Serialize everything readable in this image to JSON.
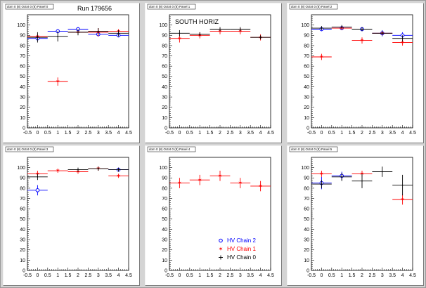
{
  "colors": {
    "hv_chain_2": "#0000ff",
    "hv_chain_1": "#ff0000",
    "hv_chain_0": "#000000"
  },
  "legend": [
    {
      "name": "HV Chain 2",
      "color": "#0000ff",
      "marker": "open-circle"
    },
    {
      "name": "HV Chain 1",
      "color": "#ff0000",
      "marker": "star"
    },
    {
      "name": "HV Chain 0",
      "color": "#000000",
      "marker": "plus"
    }
  ],
  "chart_data": [
    {
      "type": "scatter",
      "title": "dom 0 (8) Octnt 0 (8) Panel 0",
      "label": "Run 179656",
      "xlim": [
        -0.5,
        4.5
      ],
      "ylim": [
        0,
        110
      ],
      "xticks": [
        "-0.5",
        "0",
        "0.5",
        "1",
        "1.5",
        "2",
        "2.5",
        "3",
        "3.5",
        "4",
        "4.5"
      ],
      "yticks": [
        "0",
        "10",
        "20",
        "30",
        "40",
        "50",
        "60",
        "70",
        "80",
        "90",
        "100"
      ],
      "series": [
        {
          "name": "HV Chain 2",
          "color": "#0000ff",
          "marker": "open-circle",
          "points": [
            {
              "x": 0,
              "y": 87,
              "yerr": 2
            },
            {
              "x": 1,
              "y": 94,
              "yerr": 2
            },
            {
              "x": 2,
              "y": 96,
              "yerr": 2
            },
            {
              "x": 3,
              "y": 91,
              "yerr": 2
            },
            {
              "x": 4,
              "y": 90,
              "yerr": 2
            }
          ]
        },
        {
          "name": "HV Chain 1",
          "color": "#ff0000",
          "marker": "star",
          "points": [
            {
              "x": 0,
              "y": 89,
              "yerr": 2
            },
            {
              "x": 1,
              "y": 45,
              "yerr": 4
            },
            {
              "x": 2,
              "y": 93,
              "yerr": 2
            },
            {
              "x": 3,
              "y": 93,
              "yerr": 4
            },
            {
              "x": 4,
              "y": 94,
              "yerr": 2
            }
          ]
        },
        {
          "name": "HV Chain 0",
          "color": "#000000",
          "marker": "plus",
          "points": [
            {
              "x": 0,
              "y": 88,
              "yerr": 5
            },
            {
              "x": 1,
              "y": 89,
              "yerr": 5
            },
            {
              "x": 2,
              "y": 93,
              "yerr": 3
            },
            {
              "x": 3,
              "y": 94,
              "yerr": 3
            },
            {
              "x": 4,
              "y": 92,
              "yerr": 3
            }
          ]
        }
      ]
    },
    {
      "type": "scatter",
      "title": "dom 0 (8) Octnt 0 (8) Panel 1",
      "label": "SOUTH HORIZ",
      "xlim": [
        -0.5,
        4.5
      ],
      "ylim": [
        0,
        110
      ],
      "xticks": [
        "-0.5",
        "0",
        "0.5",
        "1",
        "1.5",
        "2",
        "2.5",
        "3",
        "3.5",
        "4",
        "4.5"
      ],
      "yticks": [
        "0",
        "10",
        "20",
        "30",
        "40",
        "50",
        "60",
        "70",
        "80",
        "90",
        "100"
      ],
      "series": [
        {
          "name": "HV Chain 1",
          "color": "#ff0000",
          "marker": "star",
          "points": [
            {
              "x": 0,
              "y": 87,
              "yerr": 4
            },
            {
              "x": 1,
              "y": 90,
              "yerr": 3
            },
            {
              "x": 2,
              "y": 94,
              "yerr": 3
            },
            {
              "x": 3,
              "y": 94,
              "yerr": 3
            },
            {
              "x": 4,
              "y": 88,
              "yerr": 3
            }
          ]
        },
        {
          "name": "HV Chain 0",
          "color": "#000000",
          "marker": "plus",
          "points": [
            {
              "x": 0,
              "y": 92,
              "yerr": 3
            },
            {
              "x": 1,
              "y": 91,
              "yerr": 2
            },
            {
              "x": 2,
              "y": 96,
              "yerr": 2
            },
            {
              "x": 3,
              "y": 96,
              "yerr": 2
            },
            {
              "x": 4,
              "y": 88,
              "yerr": 2
            }
          ]
        }
      ]
    },
    {
      "type": "scatter",
      "title": "dom 0 (8) Octnt 0 (8) Panel 2",
      "label": "",
      "xlim": [
        -0.5,
        4.5
      ],
      "ylim": [
        0,
        110
      ],
      "xticks": [
        "-0.5",
        "0",
        "0.5",
        "1",
        "1.5",
        "2",
        "2.5",
        "3",
        "3.5",
        "4",
        "4.5"
      ],
      "yticks": [
        "0",
        "10",
        "20",
        "30",
        "40",
        "50",
        "60",
        "70",
        "80",
        "90",
        "100"
      ],
      "series": [
        {
          "name": "HV Chain 2",
          "color": "#0000ff",
          "marker": "open-circle",
          "points": [
            {
              "x": 0,
              "y": 96,
              "yerr": 2
            },
            {
              "x": 1,
              "y": 97,
              "yerr": 2
            },
            {
              "x": 2,
              "y": 96,
              "yerr": 2
            },
            {
              "x": 3,
              "y": 92,
              "yerr": 3
            },
            {
              "x": 4,
              "y": 90,
              "yerr": 3
            }
          ]
        },
        {
          "name": "HV Chain 1",
          "color": "#ff0000",
          "marker": "star",
          "points": [
            {
              "x": 0,
              "y": 69,
              "yerr": 3
            },
            {
              "x": 1,
              "y": 97,
              "yerr": 2
            },
            {
              "x": 2,
              "y": 85,
              "yerr": 3
            },
            {
              "x": 3,
              "y": 92,
              "yerr": 2
            },
            {
              "x": 4,
              "y": 83,
              "yerr": 3
            }
          ]
        },
        {
          "name": "HV Chain 0",
          "color": "#000000",
          "marker": "plus",
          "points": [
            {
              "x": 0,
              "y": 97,
              "yerr": 2
            },
            {
              "x": 1,
              "y": 98,
              "yerr": 2
            },
            {
              "x": 2,
              "y": 96,
              "yerr": 2
            },
            {
              "x": 3,
              "y": 92,
              "yerr": 2
            },
            {
              "x": 4,
              "y": 87,
              "yerr": 3
            }
          ]
        }
      ]
    },
    {
      "type": "scatter",
      "title": "dom 0 (8) Octnt 0 (8) Panel 3",
      "label": "",
      "xlim": [
        -0.5,
        4.5
      ],
      "ylim": [
        0,
        110
      ],
      "xticks": [
        "-0.5",
        "0",
        "0.5",
        "1",
        "1.5",
        "2",
        "2.5",
        "3",
        "3.5",
        "4",
        "4.5"
      ],
      "yticks": [
        "0",
        "10",
        "20",
        "30",
        "40",
        "50",
        "60",
        "70",
        "80",
        "90",
        "100"
      ],
      "series": [
        {
          "name": "HV Chain 2",
          "color": "#0000ff",
          "marker": "open-circle",
          "points": [
            {
              "x": 0,
              "y": 78,
              "yerr": 5
            },
            {
              "x": 4,
              "y": 98,
              "yerr": 2
            }
          ]
        },
        {
          "name": "HV Chain 1",
          "color": "#ff0000",
          "marker": "star",
          "points": [
            {
              "x": 0,
              "y": 94,
              "yerr": 3
            },
            {
              "x": 1,
              "y": 97,
              "yerr": 2
            },
            {
              "x": 2,
              "y": 96,
              "yerr": 2
            },
            {
              "x": 3,
              "y": 99,
              "yerr": 2
            },
            {
              "x": 4,
              "y": 92,
              "yerr": 2
            }
          ]
        },
        {
          "name": "HV Chain 0",
          "color": "#000000",
          "marker": "plus",
          "points": [
            {
              "x": 0,
              "y": 91,
              "yerr": 3
            },
            {
              "x": 2,
              "y": 98,
              "yerr": 2
            },
            {
              "x": 3,
              "y": 99,
              "yerr": 2
            },
            {
              "x": 4,
              "y": 98,
              "yerr": 2
            }
          ]
        }
      ]
    },
    {
      "type": "scatter",
      "title": "dom 0 (8) Octnt 0 (8) Panel 4",
      "label": "",
      "xlim": [
        -0.5,
        4.5
      ],
      "ylim": [
        0,
        110
      ],
      "xticks": [
        "-0.5",
        "0",
        "0.5",
        "1",
        "1.5",
        "2",
        "2.5",
        "3",
        "3.5",
        "4",
        "4.5"
      ],
      "yticks": [
        "0",
        "10",
        "20",
        "30",
        "40",
        "50",
        "60",
        "70",
        "80",
        "90",
        "100"
      ],
      "series": [
        {
          "name": "HV Chain 1",
          "color": "#ff0000",
          "marker": "star",
          "points": [
            {
              "x": 0,
              "y": 85,
              "yerr": 5
            },
            {
              "x": 1,
              "y": 88,
              "yerr": 5
            },
            {
              "x": 2,
              "y": 92,
              "yerr": 5
            },
            {
              "x": 3,
              "y": 85,
              "yerr": 5
            },
            {
              "x": 4,
              "y": 82,
              "yerr": 5
            }
          ]
        }
      ]
    },
    {
      "type": "scatter",
      "title": "dom 0 (8) Octnt 0 (8) Panel 5",
      "label": "",
      "xlim": [
        -0.5,
        4.5
      ],
      "ylim": [
        0,
        110
      ],
      "xticks": [
        "-0.5",
        "0",
        "0.5",
        "1",
        "1.5",
        "2",
        "2.5",
        "3",
        "3.5",
        "4",
        "4.5"
      ],
      "yticks": [
        "0",
        "10",
        "20",
        "30",
        "40",
        "50",
        "60",
        "70",
        "80",
        "90",
        "100"
      ],
      "series": [
        {
          "name": "HV Chain 2",
          "color": "#0000ff",
          "marker": "open-circle",
          "points": [
            {
              "x": 0,
              "y": 85,
              "yerr": 6
            },
            {
              "x": 1,
              "y": 92,
              "yerr": 4
            }
          ]
        },
        {
          "name": "HV Chain 1",
          "color": "#ff0000",
          "marker": "star",
          "points": [
            {
              "x": 0,
              "y": 94,
              "yerr": 3
            },
            {
              "x": 2,
              "y": 94,
              "yerr": 3
            },
            {
              "x": 4,
              "y": 69,
              "yerr": 5
            }
          ]
        },
        {
          "name": "HV Chain 0",
          "color": "#000000",
          "marker": "plus",
          "points": [
            {
              "x": 0,
              "y": 84,
              "yerr": 4
            },
            {
              "x": 1,
              "y": 91,
              "yerr": 4
            },
            {
              "x": 2,
              "y": 87,
              "yerr": 7
            },
            {
              "x": 3,
              "y": 96,
              "yerr": 5
            },
            {
              "x": 4,
              "y": 83,
              "yerr": 10
            }
          ]
        }
      ]
    }
  ]
}
